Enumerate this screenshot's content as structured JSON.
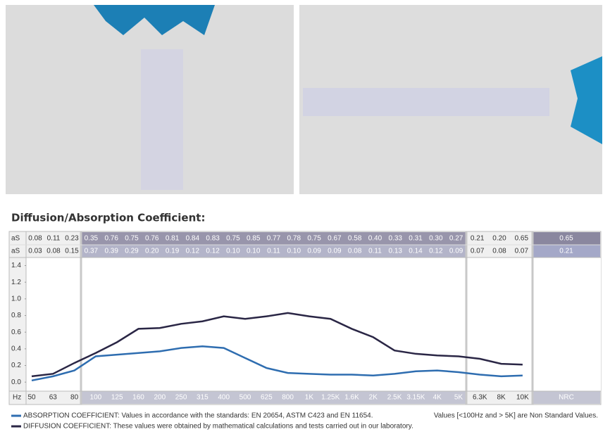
{
  "chart_data": {
    "type": "line",
    "title": "Diffusion/Absorption Coefficient:",
    "categories": [
      "50",
      "63",
      "80",
      "100",
      "125",
      "160",
      "200",
      "250",
      "315",
      "400",
      "500",
      "625",
      "800",
      "1K",
      "1.25K",
      "1.6K",
      "2K",
      "2.5K",
      "3.15K",
      "4K",
      "5K",
      "6.3K",
      "8K",
      "10K"
    ],
    "series": [
      {
        "name": "ABSORPTION COEFFICIENT: Values in accordance with the standards: EN 20654, ASTM C423 and EN 11654.",
        "color": "#2e6db0",
        "values": [
          0.02,
          0.07,
          0.14,
          0.31,
          0.33,
          0.35,
          0.37,
          0.41,
          0.43,
          0.41,
          0.29,
          0.17,
          0.11,
          0.1,
          0.09,
          0.09,
          0.08,
          0.1,
          0.13,
          0.14,
          0.12,
          0.09,
          0.07,
          0.08
        ]
      },
      {
        "name": "DIFFUSION COEFFICIENT: These values were obtained by mathematical calculations and tests carried out in our laboratory.",
        "color": "#2a2645",
        "values": [
          0.07,
          0.1,
          0.23,
          0.35,
          0.48,
          0.64,
          0.65,
          0.7,
          0.73,
          0.79,
          0.76,
          0.79,
          0.83,
          0.79,
          0.76,
          0.64,
          0.54,
          0.38,
          0.34,
          0.32,
          0.31,
          0.28,
          0.22,
          0.21
        ]
      }
    ],
    "ylim": [
      -0.1,
      1.48
    ],
    "yticks": [
      {
        "value": 0,
        "label": "0.0"
      },
      0.2,
      0.4,
      0.6,
      0.8,
      {
        "value": 1,
        "label": "1.0"
      },
      1.2,
      1.4
    ],
    "x_header": "Hz",
    "note": "Values [<100Hz and > 5K] are Non Standard Values.",
    "table": {
      "nrc_label": "NRC",
      "rows": [
        {
          "label": "aS",
          "sections": [
            [
              "0.08",
              "0.11",
              "0.23"
            ],
            [
              "0.35",
              "0.76",
              "0.75",
              "0.76",
              "0.81",
              "0.84",
              "0.83",
              "0.75",
              "0.85",
              "0.77",
              "0.78",
              "0.75",
              "0.67",
              "0.58",
              "0.40",
              "0.33",
              "0.31",
              "0.30",
              "0.27"
            ],
            [
              "0.21",
              "0.20",
              "0.65"
            ]
          ],
          "nrc": "0.65"
        },
        {
          "label": "aS",
          "sections": [
            [
              "0.03",
              "0.08",
              "0.15"
            ],
            [
              "0.37",
              "0.39",
              "0.29",
              "0.20",
              "0.19",
              "0.12",
              "0.12",
              "0.10",
              "0.10",
              "0.11",
              "0.10",
              "0.09",
              "0.09",
              "0.08",
              "0.11",
              "0.13",
              "0.14",
              "0.12",
              "0.09"
            ],
            [
              "0.07",
              "0.08",
              "0.07"
            ]
          ],
          "nrc": "0.21"
        }
      ]
    }
  }
}
